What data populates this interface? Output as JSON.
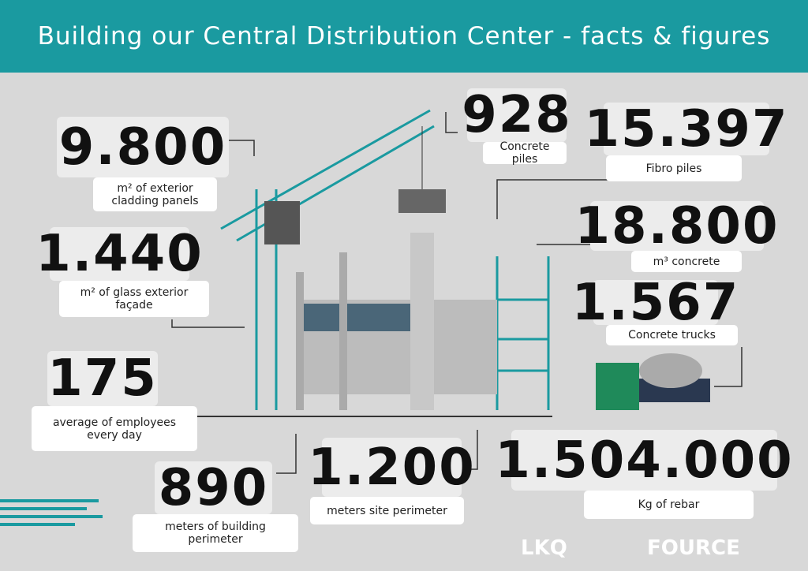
{
  "header": {
    "title": "Building our Central Distribution Center - facts & figures"
  },
  "facts": [
    {
      "number": "9.800",
      "label": "m² of exterior cladding panels"
    },
    {
      "number": "928",
      "label": "Concrete piles"
    },
    {
      "number": "15.397",
      "label": "Fibro piles"
    },
    {
      "number": "18.800",
      "label": "m³ concrete"
    },
    {
      "number": "1.567",
      "label": "Concrete trucks"
    },
    {
      "number": "1.440",
      "label": "m² of glass exterior façade"
    },
    {
      "number": "175",
      "label": "average of employees every day"
    },
    {
      "number": "890",
      "label": "meters of building perimeter"
    },
    {
      "number": "1.200",
      "label": "meters site perimeter"
    },
    {
      "number": "1.504.000",
      "label": "Kg of rebar"
    }
  ],
  "logos": [
    "LKQ",
    "FOURCE"
  ]
}
